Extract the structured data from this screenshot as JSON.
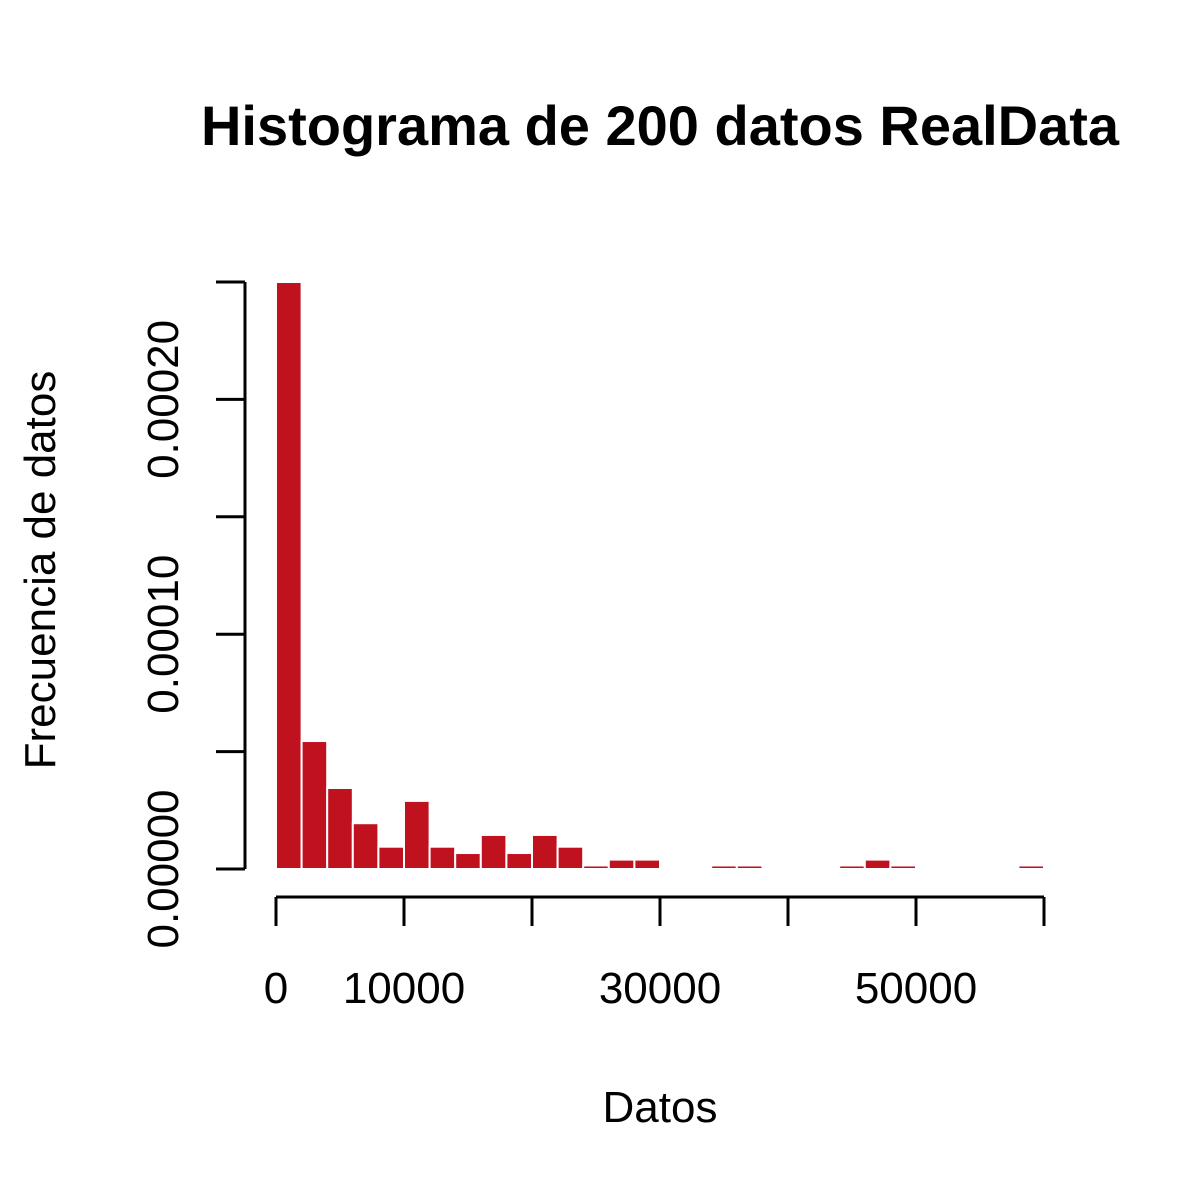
{
  "chart_data": {
    "type": "bar",
    "subtype": "histogram",
    "title": "Histograma de 200 datos RealData",
    "xlabel": "Datos",
    "ylabel": "Frecuencia de datos",
    "bar_color": "#C0111F",
    "bar_border_color": "#ffffff",
    "bin_width": 2000,
    "bins": [
      {
        "x0": 0,
        "x1": 2000,
        "value": 0.00025
      },
      {
        "x0": 2000,
        "x1": 4000,
        "value": 5.45e-05
      },
      {
        "x0": 4000,
        "x1": 6000,
        "value": 3.45e-05
      },
      {
        "x0": 6000,
        "x1": 8000,
        "value": 1.95e-05
      },
      {
        "x0": 8000,
        "x1": 10000,
        "value": 9.5e-06
      },
      {
        "x0": 10000,
        "x1": 12000,
        "value": 2.9e-05
      },
      {
        "x0": 12000,
        "x1": 14000,
        "value": 9.5e-06
      },
      {
        "x0": 14000,
        "x1": 16000,
        "value": 6.8e-06
      },
      {
        "x0": 16000,
        "x1": 18000,
        "value": 1.45e-05
      },
      {
        "x0": 18000,
        "x1": 20000,
        "value": 6.8e-06
      },
      {
        "x0": 20000,
        "x1": 22000,
        "value": 1.45e-05
      },
      {
        "x0": 22000,
        "x1": 24000,
        "value": 9.5e-06
      },
      {
        "x0": 24000,
        "x1": 26000,
        "value": 1.5e-06
      },
      {
        "x0": 26000,
        "x1": 28000,
        "value": 4e-06
      },
      {
        "x0": 28000,
        "x1": 30000,
        "value": 4e-06
      },
      {
        "x0": 30000,
        "x1": 32000,
        "value": 0
      },
      {
        "x0": 32000,
        "x1": 34000,
        "value": 0
      },
      {
        "x0": 34000,
        "x1": 36000,
        "value": 1.5e-06
      },
      {
        "x0": 36000,
        "x1": 38000,
        "value": 1.5e-06
      },
      {
        "x0": 38000,
        "x1": 40000,
        "value": 0
      },
      {
        "x0": 40000,
        "x1": 42000,
        "value": 0
      },
      {
        "x0": 42000,
        "x1": 44000,
        "value": 0
      },
      {
        "x0": 44000,
        "x1": 46000,
        "value": 1.5e-06
      },
      {
        "x0": 46000,
        "x1": 48000,
        "value": 4e-06
      },
      {
        "x0": 48000,
        "x1": 50000,
        "value": 1.5e-06
      },
      {
        "x0": 50000,
        "x1": 52000,
        "value": 0
      },
      {
        "x0": 52000,
        "x1": 54000,
        "value": 0
      },
      {
        "x0": 54000,
        "x1": 56000,
        "value": 0
      },
      {
        "x0": 56000,
        "x1": 58000,
        "value": 0
      },
      {
        "x0": 58000,
        "x1": 60000,
        "value": 1.5e-06
      }
    ],
    "xlim": [
      0,
      60000
    ],
    "ylim": [
      0,
      0.00025
    ],
    "x_ticks": [
      0,
      10000,
      20000,
      30000,
      40000,
      50000,
      60000
    ],
    "x_tick_labels": [
      "0",
      "10000",
      "",
      "30000",
      "",
      "50000",
      ""
    ],
    "y_ticks": [
      0,
      5e-05,
      0.0001,
      0.00015,
      0.0002,
      0.00025
    ],
    "y_tick_labels": [
      "0.00000",
      "",
      "0.00010",
      "",
      "0.00020",
      ""
    ],
    "grid": false,
    "legend": "none"
  }
}
